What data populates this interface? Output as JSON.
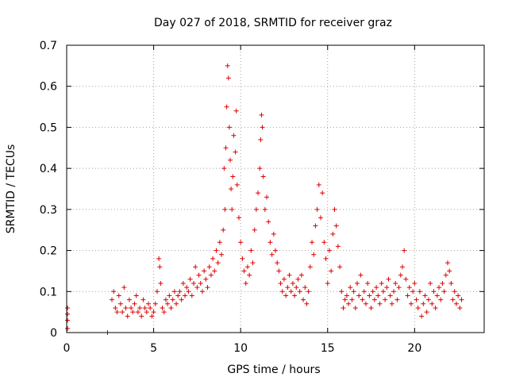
{
  "chart_data": {
    "type": "scatter",
    "title": "Day 027 of 2018, SRMTID for receiver graz",
    "xlabel": "GPS time / hours",
    "ylabel": "SRMTID / TECUs",
    "xlim": [
      0,
      24
    ],
    "ylim": [
      0,
      0.7
    ],
    "xticks": [
      0,
      5,
      10,
      15,
      20
    ],
    "yticks": [
      0,
      0.1,
      0.2,
      0.3,
      0.4,
      0.5,
      0.6,
      0.7
    ],
    "xtick_labels": [
      "0",
      "5",
      "10",
      "15",
      "20"
    ],
    "ytick_labels": [
      "0",
      "0.1",
      "0.2",
      "0.3",
      "0.4",
      "0.5",
      "0.6",
      "0.7"
    ],
    "grid": true,
    "marker": "+",
    "color": "#dd0000",
    "series": [
      {
        "name": "SRMTID",
        "points": [
          [
            0.05,
            0.06
          ],
          [
            0.05,
            0.045
          ],
          [
            0.05,
            0.03
          ],
          [
            0.05,
            0.01
          ],
          [
            2.35,
            0.0
          ],
          [
            2.35,
            0.0
          ],
          [
            2.6,
            0.08
          ],
          [
            2.7,
            0.1
          ],
          [
            2.8,
            0.06
          ],
          [
            2.9,
            0.05
          ],
          [
            3.0,
            0.09
          ],
          [
            3.1,
            0.07
          ],
          [
            3.2,
            0.05
          ],
          [
            3.3,
            0.11
          ],
          [
            3.4,
            0.06
          ],
          [
            3.5,
            0.04
          ],
          [
            3.6,
            0.08
          ],
          [
            3.7,
            0.06
          ],
          [
            3.8,
            0.05
          ],
          [
            3.9,
            0.07
          ],
          [
            4.0,
            0.09
          ],
          [
            4.1,
            0.05
          ],
          [
            4.2,
            0.06
          ],
          [
            4.3,
            0.04
          ],
          [
            4.4,
            0.08
          ],
          [
            4.5,
            0.06
          ],
          [
            4.6,
            0.05
          ],
          [
            4.7,
            0.07
          ],
          [
            4.8,
            0.06
          ],
          [
            4.9,
            0.04
          ],
          [
            5.0,
            0.05
          ],
          [
            5.1,
            0.07
          ],
          [
            5.2,
            0.1
          ],
          [
            5.3,
            0.18
          ],
          [
            5.35,
            0.16
          ],
          [
            5.4,
            0.12
          ],
          [
            5.5,
            0.06
          ],
          [
            5.6,
            0.05
          ],
          [
            5.7,
            0.08
          ],
          [
            5.8,
            0.07
          ],
          [
            5.9,
            0.09
          ],
          [
            6.0,
            0.06
          ],
          [
            6.1,
            0.08
          ],
          [
            6.2,
            0.1
          ],
          [
            6.3,
            0.07
          ],
          [
            6.4,
            0.09
          ],
          [
            6.5,
            0.1
          ],
          [
            6.6,
            0.08
          ],
          [
            6.7,
            0.12
          ],
          [
            6.8,
            0.09
          ],
          [
            6.9,
            0.11
          ],
          [
            7.0,
            0.1
          ],
          [
            7.1,
            0.13
          ],
          [
            7.2,
            0.09
          ],
          [
            7.3,
            0.12
          ],
          [
            7.4,
            0.16
          ],
          [
            7.5,
            0.11
          ],
          [
            7.6,
            0.14
          ],
          [
            7.7,
            0.12
          ],
          [
            7.8,
            0.1
          ],
          [
            7.9,
            0.15
          ],
          [
            8.0,
            0.13
          ],
          [
            8.1,
            0.11
          ],
          [
            8.2,
            0.16
          ],
          [
            8.3,
            0.14
          ],
          [
            8.4,
            0.18
          ],
          [
            8.5,
            0.15
          ],
          [
            8.6,
            0.2
          ],
          [
            8.7,
            0.17
          ],
          [
            8.8,
            0.22
          ],
          [
            8.9,
            0.19
          ],
          [
            9.0,
            0.25
          ],
          [
            9.05,
            0.4
          ],
          [
            9.1,
            0.3
          ],
          [
            9.15,
            0.45
          ],
          [
            9.2,
            0.55
          ],
          [
            9.25,
            0.65
          ],
          [
            9.3,
            0.62
          ],
          [
            9.35,
            0.5
          ],
          [
            9.4,
            0.42
          ],
          [
            9.45,
            0.35
          ],
          [
            9.5,
            0.3
          ],
          [
            9.55,
            0.38
          ],
          [
            9.6,
            0.48
          ],
          [
            9.7,
            0.44
          ],
          [
            9.75,
            0.54
          ],
          [
            9.8,
            0.36
          ],
          [
            9.9,
            0.28
          ],
          [
            10.0,
            0.22
          ],
          [
            10.1,
            0.18
          ],
          [
            10.2,
            0.15
          ],
          [
            10.3,
            0.12
          ],
          [
            10.4,
            0.16
          ],
          [
            10.5,
            0.14
          ],
          [
            10.6,
            0.2
          ],
          [
            10.7,
            0.17
          ],
          [
            10.8,
            0.25
          ],
          [
            10.9,
            0.3
          ],
          [
            11.0,
            0.34
          ],
          [
            11.1,
            0.4
          ],
          [
            11.15,
            0.47
          ],
          [
            11.2,
            0.53
          ],
          [
            11.25,
            0.5
          ],
          [
            11.3,
            0.38
          ],
          [
            11.4,
            0.3
          ],
          [
            11.5,
            0.33
          ],
          [
            11.6,
            0.27
          ],
          [
            11.7,
            0.22
          ],
          [
            11.8,
            0.19
          ],
          [
            11.9,
            0.24
          ],
          [
            12.0,
            0.2
          ],
          [
            12.1,
            0.17
          ],
          [
            12.2,
            0.15
          ],
          [
            12.3,
            0.12
          ],
          [
            12.4,
            0.1
          ],
          [
            12.5,
            0.13
          ],
          [
            12.6,
            0.09
          ],
          [
            12.7,
            0.11
          ],
          [
            12.8,
            0.14
          ],
          [
            12.9,
            0.1
          ],
          [
            13.0,
            0.12
          ],
          [
            13.1,
            0.09
          ],
          [
            13.2,
            0.11
          ],
          [
            13.3,
            0.13
          ],
          [
            13.4,
            0.1
          ],
          [
            13.5,
            0.14
          ],
          [
            13.6,
            0.08
          ],
          [
            13.7,
            0.11
          ],
          [
            13.8,
            0.07
          ],
          [
            13.9,
            0.1
          ],
          [
            14.0,
            0.16
          ],
          [
            14.1,
            0.22
          ],
          [
            14.2,
            0.19
          ],
          [
            14.3,
            0.26
          ],
          [
            14.4,
            0.3
          ],
          [
            14.5,
            0.36
          ],
          [
            14.6,
            0.28
          ],
          [
            14.7,
            0.34
          ],
          [
            14.8,
            0.22
          ],
          [
            14.9,
            0.18
          ],
          [
            15.0,
            0.12
          ],
          [
            15.1,
            0.2
          ],
          [
            15.2,
            0.15
          ],
          [
            15.3,
            0.24
          ],
          [
            15.4,
            0.3
          ],
          [
            15.5,
            0.26
          ],
          [
            15.6,
            0.21
          ],
          [
            15.7,
            0.16
          ],
          [
            15.8,
            0.1
          ],
          [
            15.9,
            0.06
          ],
          [
            16.0,
            0.08
          ],
          [
            16.1,
            0.09
          ],
          [
            16.2,
            0.07
          ],
          [
            16.3,
            0.11
          ],
          [
            16.4,
            0.08
          ],
          [
            16.5,
            0.1
          ],
          [
            16.6,
            0.06
          ],
          [
            16.7,
            0.12
          ],
          [
            16.8,
            0.09
          ],
          [
            16.9,
            0.14
          ],
          [
            17.0,
            0.08
          ],
          [
            17.1,
            0.1
          ],
          [
            17.2,
            0.07
          ],
          [
            17.3,
            0.12
          ],
          [
            17.4,
            0.09
          ],
          [
            17.5,
            0.06
          ],
          [
            17.6,
            0.1
          ],
          [
            17.7,
            0.08
          ],
          [
            17.8,
            0.11
          ],
          [
            17.9,
            0.09
          ],
          [
            18.0,
            0.07
          ],
          [
            18.1,
            0.12
          ],
          [
            18.2,
            0.1
          ],
          [
            18.3,
            0.08
          ],
          [
            18.4,
            0.11
          ],
          [
            18.5,
            0.13
          ],
          [
            18.6,
            0.09
          ],
          [
            18.7,
            0.07
          ],
          [
            18.8,
            0.1
          ],
          [
            18.9,
            0.12
          ],
          [
            19.0,
            0.08
          ],
          [
            19.1,
            0.11
          ],
          [
            19.2,
            0.14
          ],
          [
            19.3,
            0.16
          ],
          [
            19.4,
            0.2
          ],
          [
            19.5,
            0.13
          ],
          [
            19.6,
            0.09
          ],
          [
            19.7,
            0.11
          ],
          [
            19.8,
            0.07
          ],
          [
            19.9,
            0.1
          ],
          [
            20.0,
            0.12
          ],
          [
            20.1,
            0.08
          ],
          [
            20.2,
            0.06
          ],
          [
            20.3,
            0.1
          ],
          [
            20.4,
            0.04
          ],
          [
            20.5,
            0.07
          ],
          [
            20.6,
            0.09
          ],
          [
            20.7,
            0.05
          ],
          [
            20.8,
            0.08
          ],
          [
            20.9,
            0.12
          ],
          [
            21.0,
            0.07
          ],
          [
            21.1,
            0.1
          ],
          [
            21.2,
            0.06
          ],
          [
            21.3,
            0.09
          ],
          [
            21.4,
            0.11
          ],
          [
            21.5,
            0.08
          ],
          [
            21.6,
            0.12
          ],
          [
            21.7,
            0.1
          ],
          [
            21.8,
            0.14
          ],
          [
            21.9,
            0.17
          ],
          [
            22.0,
            0.15
          ],
          [
            22.1,
            0.12
          ],
          [
            22.2,
            0.08
          ],
          [
            22.3,
            0.1
          ],
          [
            22.4,
            0.07
          ],
          [
            22.5,
            0.09
          ],
          [
            22.6,
            0.06
          ],
          [
            22.7,
            0.08
          ]
        ]
      }
    ]
  }
}
